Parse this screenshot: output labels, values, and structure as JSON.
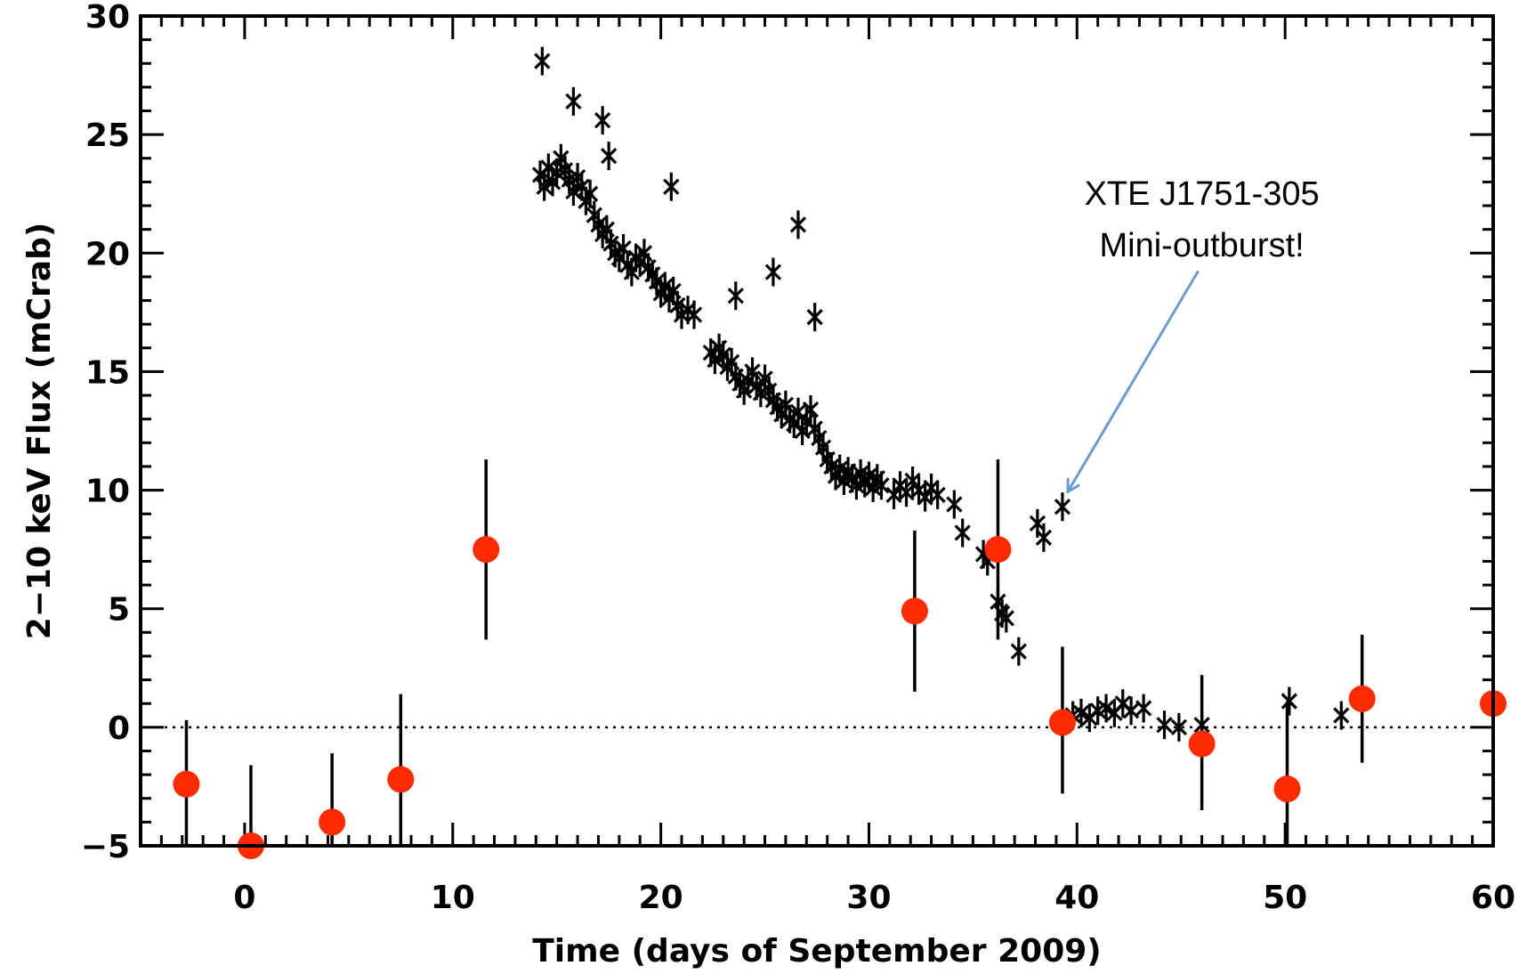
{
  "chart_data": {
    "type": "scatter",
    "title": "",
    "xlabel": "Time (days of September 2009)",
    "ylabel": "2−10 keV Flux (mCrab)",
    "xlim": [
      -5,
      60
    ],
    "ylim": [
      -5,
      30
    ],
    "x_ticks": [
      0,
      10,
      20,
      30,
      40,
      50,
      60
    ],
    "x_tick_labels": [
      "0",
      "10",
      "20",
      "30",
      "40",
      "50",
      "60"
    ],
    "y_ticks": [
      -5,
      0,
      5,
      10,
      15,
      20,
      25,
      30
    ],
    "y_tick_labels": [
      "−5",
      "0",
      "5",
      "10",
      "15",
      "20",
      "25",
      "30"
    ],
    "zero_line": 0,
    "grid": false,
    "colors": {
      "black_series": "#000000",
      "red_series": "#ff2a00",
      "arrow": "#6a9bd1"
    },
    "series": [
      {
        "marker": "asterisk",
        "color": "#000000",
        "x": [
          14.2,
          14.4,
          14.6,
          14.8,
          15.0,
          15.2,
          15.4,
          15.6,
          15.8,
          16.0,
          16.2,
          16.4,
          16.6,
          16.8,
          17.0,
          17.2,
          17.4,
          17.6,
          17.8,
          18.0,
          18.2,
          18.4,
          18.6,
          18.8,
          19.0,
          19.2,
          19.4,
          19.6,
          19.8,
          20.0,
          20.2,
          20.4,
          20.6,
          20.8,
          21.0,
          21.3,
          21.6,
          22.4,
          22.6,
          22.8,
          23.0,
          23.2,
          23.4,
          23.6,
          23.8,
          24.0,
          24.2,
          24.4,
          24.6,
          24.8,
          25.0,
          25.2,
          25.4,
          25.6,
          25.8,
          26.0,
          26.2,
          26.4,
          26.6,
          26.8,
          27.0,
          27.2,
          27.4,
          27.6,
          27.8,
          28.0,
          28.2,
          28.4,
          28.6,
          28.8,
          29.0,
          29.2,
          29.4,
          29.6,
          29.8,
          30.0,
          30.2,
          30.4,
          30.6,
          31.2,
          31.5,
          31.8,
          32.1,
          32.4,
          32.7,
          33.0,
          33.3,
          34.1,
          34.5,
          35.5,
          35.7,
          36.2,
          36.4,
          36.6,
          37.2,
          38.1,
          38.4,
          39.3,
          14.3,
          15.8,
          17.2,
          17.5,
          20.5,
          23.6,
          25.4,
          26.6,
          27.4,
          39.8,
          40.2,
          40.6,
          41.0,
          41.4,
          41.8,
          42.2,
          42.6,
          43.2,
          44.2,
          44.9,
          46.0,
          50.2,
          52.7
        ],
        "y": [
          23.3,
          22.8,
          23.6,
          23.0,
          23.4,
          24.0,
          23.5,
          23.1,
          22.6,
          23.2,
          22.8,
          22.2,
          22.5,
          21.6,
          21.2,
          20.8,
          21.0,
          20.4,
          20.0,
          19.8,
          20.2,
          19.5,
          19.2,
          19.8,
          19.6,
          20.0,
          19.4,
          19.1,
          18.8,
          18.3,
          18.6,
          18.1,
          18.4,
          17.8,
          17.4,
          17.6,
          17.4,
          15.8,
          15.5,
          16.0,
          15.7,
          15.2,
          15.4,
          14.8,
          14.5,
          14.2,
          14.6,
          15.0,
          14.4,
          14.1,
          14.7,
          14.2,
          13.8,
          13.5,
          13.2,
          13.6,
          13.0,
          12.8,
          13.3,
          12.5,
          12.9,
          13.4,
          12.6,
          12.2,
          11.8,
          11.3,
          11.0,
          10.6,
          10.9,
          10.4,
          10.8,
          10.5,
          10.2,
          10.7,
          10.3,
          10.6,
          10.1,
          10.5,
          10.2,
          9.8,
          10.2,
          9.9,
          10.4,
          10.0,
          9.7,
          10.1,
          9.8,
          9.4,
          8.2,
          7.3,
          7.0,
          5.3,
          4.8,
          4.6,
          3.2,
          8.6,
          8.0,
          9.3,
          28.1,
          26.4,
          25.6,
          24.1,
          22.8,
          18.2,
          19.2,
          21.2,
          17.3,
          0.5,
          0.6,
          0.4,
          0.7,
          0.8,
          0.6,
          1.0,
          0.7,
          0.8,
          0.1,
          0.0,
          0.1,
          1.1,
          0.5
        ]
      },
      {
        "marker": "filled-circle",
        "color": "#ff2a00",
        "x": [
          -2.8,
          0.3,
          4.2,
          7.5,
          11.6,
          32.2,
          36.2,
          39.3,
          46.0,
          50.1,
          53.7,
          60.0
        ],
        "y": [
          -2.4,
          -5.0,
          -4.0,
          -2.2,
          7.5,
          4.9,
          7.5,
          0.2,
          -0.7,
          -2.6,
          1.2,
          1.0
        ],
        "err_low": [
          -5.0,
          -5.0,
          -5.0,
          -5.0,
          3.7,
          1.5,
          3.7,
          -2.8,
          -3.5,
          -5.0,
          -1.5,
          1.0
        ],
        "err_high": [
          0.3,
          -1.6,
          -1.1,
          1.4,
          11.3,
          8.3,
          11.3,
          3.4,
          2.2,
          1.1,
          3.9,
          1.0
        ]
      }
    ],
    "annotation": {
      "lines": [
        "XTE J1751-305",
        "Mini-outburst!"
      ],
      "arrow_from": [
        46.0,
        19.1
      ],
      "arrow_to": [
        39.6,
        10.0
      ]
    }
  }
}
